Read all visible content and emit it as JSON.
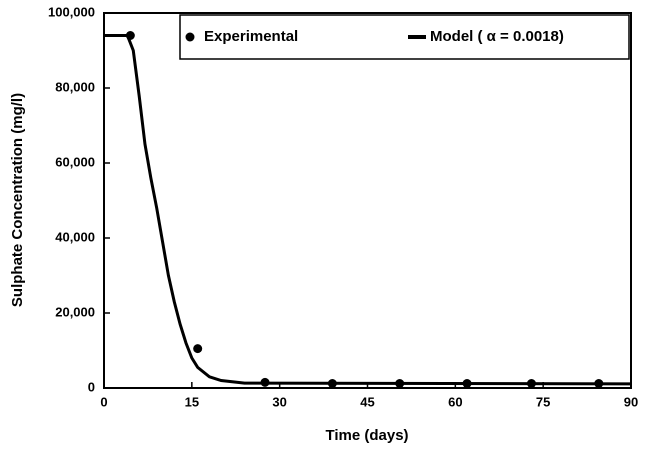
{
  "chart_data": {
    "type": "scatter",
    "xlabel": "Time (days)",
    "ylabel": "Sulphate Concentration (mg/l)",
    "xlim": [
      0,
      90
    ],
    "xticks": [
      0,
      15,
      30,
      45,
      60,
      75,
      90
    ],
    "ylim": [
      0,
      100000
    ],
    "yticks": [
      {
        "value": 0,
        "label": "0"
      },
      {
        "value": 20000,
        "label": "20,000"
      },
      {
        "value": 40000,
        "label": "40,000"
      },
      {
        "value": 60000,
        "label": "60,000"
      },
      {
        "value": 80000,
        "label": "80,000"
      },
      {
        "value": 100000,
        "label": "100,000"
      }
    ],
    "legend": "top-right",
    "series": [
      {
        "name": "Experimental",
        "style": "marker",
        "color": "#000000",
        "x": [
          4.5,
          16,
          27.5,
          39,
          50.5,
          62,
          73,
          84.5
        ],
        "values": [
          94000,
          10500,
          1500,
          1200,
          1200,
          1200,
          1200,
          1200
        ]
      },
      {
        "name": "Model ( α = 0.0018)",
        "style": "line",
        "color": "#000000",
        "x": [
          0,
          4,
          5,
          6,
          7,
          8,
          9,
          10,
          11,
          12,
          13,
          14,
          15,
          16,
          18,
          20,
          24,
          90
        ],
        "values": [
          94000,
          94000,
          90000,
          78000,
          65000,
          56000,
          48000,
          39000,
          30000,
          23000,
          17000,
          12000,
          8000,
          5500,
          3000,
          2000,
          1300,
          1100
        ]
      }
    ]
  }
}
